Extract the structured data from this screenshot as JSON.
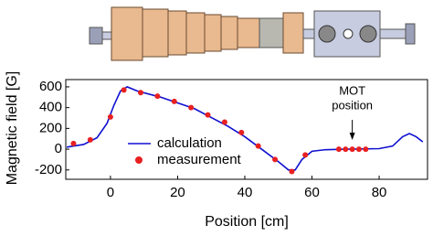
{
  "chart_data": {
    "type": "line",
    "xlabel": "Position [cm]",
    "ylabel": "Magnetic field [G]",
    "annotation": [
      "MOT",
      "position"
    ],
    "annotation_x": 72,
    "xlim": [
      -13.3,
      94.4
    ],
    "xticks": [
      0,
      20,
      40,
      60,
      80
    ],
    "ylim": [
      -290,
      670
    ],
    "yticks": [
      -200,
      0,
      200,
      400,
      600
    ],
    "series": [
      {
        "name": "calculation",
        "color": "#1010d0",
        "marker": "line",
        "x": [
          -13,
          -8,
          -4,
          -1,
          1,
          3,
          5,
          8,
          15,
          25,
          35,
          40,
          45,
          50,
          53,
          55,
          57,
          60,
          64,
          70,
          80,
          84,
          87,
          89,
          91,
          93
        ],
        "values": [
          20,
          45,
          110,
          250,
          420,
          560,
          600,
          560,
          500,
          390,
          220,
          120,
          0,
          -120,
          -200,
          -200,
          -100,
          -20,
          -5,
          0,
          5,
          30,
          120,
          150,
          120,
          70
        ]
      },
      {
        "name": "measurement",
        "color": "#e82020",
        "marker": "dot",
        "x": [
          -11,
          -6,
          0,
          4,
          9,
          14,
          19,
          24,
          29,
          34,
          39,
          44,
          49,
          54,
          58,
          68,
          70,
          72,
          74,
          76
        ],
        "values": [
          55,
          90,
          310,
          570,
          545,
          510,
          460,
          400,
          330,
          260,
          160,
          30,
          -100,
          -215,
          -55,
          0,
          0,
          0,
          0,
          0
        ]
      }
    ]
  }
}
